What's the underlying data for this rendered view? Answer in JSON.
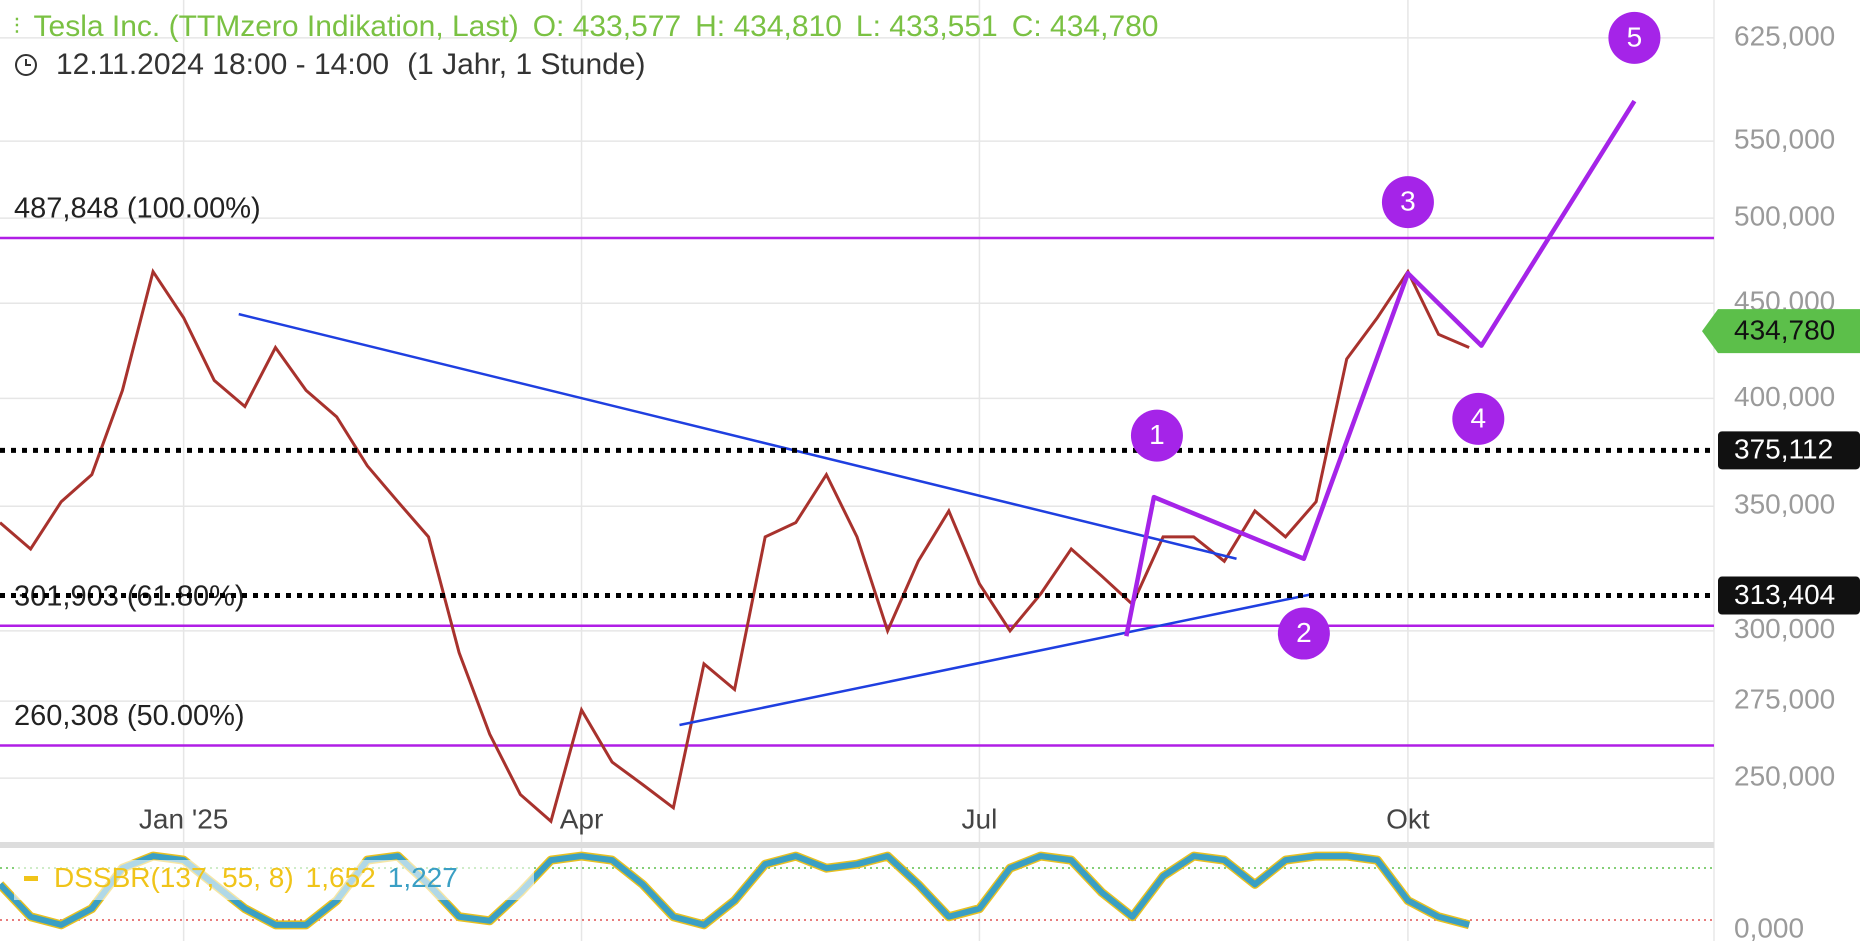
{
  "header": {
    "title": "Tesla Inc. (TTMzero Indikation, Last)",
    "ohlc": [
      "O: 433,577",
      "H: 434,810",
      "L: 433,551",
      "C: 434,780"
    ],
    "time": "12.11.2024 18:00 - 14:00",
    "range": "(1 Jahr, 1 Stunde)"
  },
  "chart_data": {
    "type": "line",
    "log_scale": true,
    "grid": true,
    "color": "#a8322d",
    "categories": [
      null,
      null,
      null,
      null,
      null,
      null,
      "Jan '25",
      null,
      null,
      null,
      null,
      null,
      null,
      null,
      null,
      null,
      null,
      null,
      null,
      "Apr",
      null,
      null,
      null,
      null,
      null,
      null,
      null,
      null,
      null,
      null,
      null,
      null,
      "Jul",
      null,
      null,
      null,
      null,
      null,
      null,
      null,
      null,
      null,
      null,
      null,
      null,
      null,
      "Okt",
      null,
      null,
      null,
      null,
      null,
      null,
      null,
      null,
      null,
      null
    ],
    "values": [
      343,
      332,
      352,
      364,
      404,
      468,
      442,
      409,
      396,
      426,
      404,
      391,
      368,
      352,
      337,
      292,
      264,
      245,
      237,
      272,
      255,
      248,
      241,
      288,
      279,
      337,
      343,
      364,
      337,
      300,
      327,
      348,
      318,
      300,
      314,
      332,
      321,
      310,
      337,
      337,
      327,
      348,
      337,
      352,
      420,
      442,
      468,
      433,
      426,
      null,
      null,
      null,
      null,
      null,
      null,
      null,
      null
    ],
    "ylim": [
      231,
      655
    ],
    "yticks": [
      {
        "value": 625,
        "label": "625,000"
      },
      {
        "value": 550,
        "label": "550,000"
      },
      {
        "value": 500,
        "label": "500,000"
      },
      {
        "value": 450,
        "label": "450,000"
      },
      {
        "value": 400,
        "label": "400,000"
      },
      {
        "value": 350,
        "label": "350,000"
      },
      {
        "value": 300,
        "label": "300,000"
      },
      {
        "value": 275,
        "label": "275,000"
      },
      {
        "value": 250,
        "label": "250,000"
      }
    ],
    "levels": [
      {
        "value": 487.848,
        "label": "487,848 (100.00%)"
      },
      {
        "value": 301.903,
        "label": "301,903 (61.80%)"
      },
      {
        "value": 260.308,
        "label": "260,308 (50.00%)"
      }
    ],
    "level_color": "#b01ee6",
    "price_lines": [
      {
        "value": 375.112,
        "label": "375,112"
      },
      {
        "value": 313.404,
        "label": "313,404"
      }
    ],
    "last_price": {
      "value": 434.78,
      "label": "434,780",
      "color": "#5cbf4a"
    },
    "trendlines": [
      {
        "x": [
          7.8,
          40.4
        ],
        "values": [
          444,
          328
        ]
      },
      {
        "x": [
          22.2,
          42.9
        ],
        "values": [
          267,
          314
        ]
      }
    ],
    "trend_color": "#1f3fe0",
    "wave_line": {
      "x": [
        36.8,
        37.7,
        42.6,
        46.0,
        48.4,
        53.4
      ],
      "values": [
        298,
        354,
        328,
        467,
        427,
        578
      ],
      "color": "#a524e8"
    },
    "waves": [
      {
        "text": "1",
        "x": 37.8,
        "y": 382
      },
      {
        "text": "2",
        "x": 42.6,
        "y": 299
      },
      {
        "text": "3",
        "x": 46.0,
        "y": 510
      },
      {
        "text": "4",
        "x": 48.3,
        "y": 390
      },
      {
        "text": "5",
        "x": 53.4,
        "y": 625
      }
    ],
    "indicator": {
      "name": "DSSBR(137, 55, 8)",
      "readings": [
        "1,652",
        "1,227"
      ],
      "color": "#3a9fc4",
      "values": [
        60,
        20,
        10,
        30,
        80,
        95,
        90,
        60,
        30,
        10,
        10,
        40,
        90,
        95,
        60,
        20,
        15,
        50,
        90,
        95,
        90,
        60,
        20,
        10,
        40,
        85,
        95,
        80,
        85,
        95,
        60,
        20,
        30,
        80,
        95,
        90,
        50,
        20,
        70,
        95,
        90,
        60,
        90,
        95,
        95,
        90,
        40,
        20,
        10,
        null,
        null,
        null,
        null,
        null,
        null,
        null,
        null
      ],
      "ylim": [
        -10,
        105
      ],
      "yticks": [
        {
          "value": 0,
          "label": "0,000"
        }
      ]
    }
  }
}
